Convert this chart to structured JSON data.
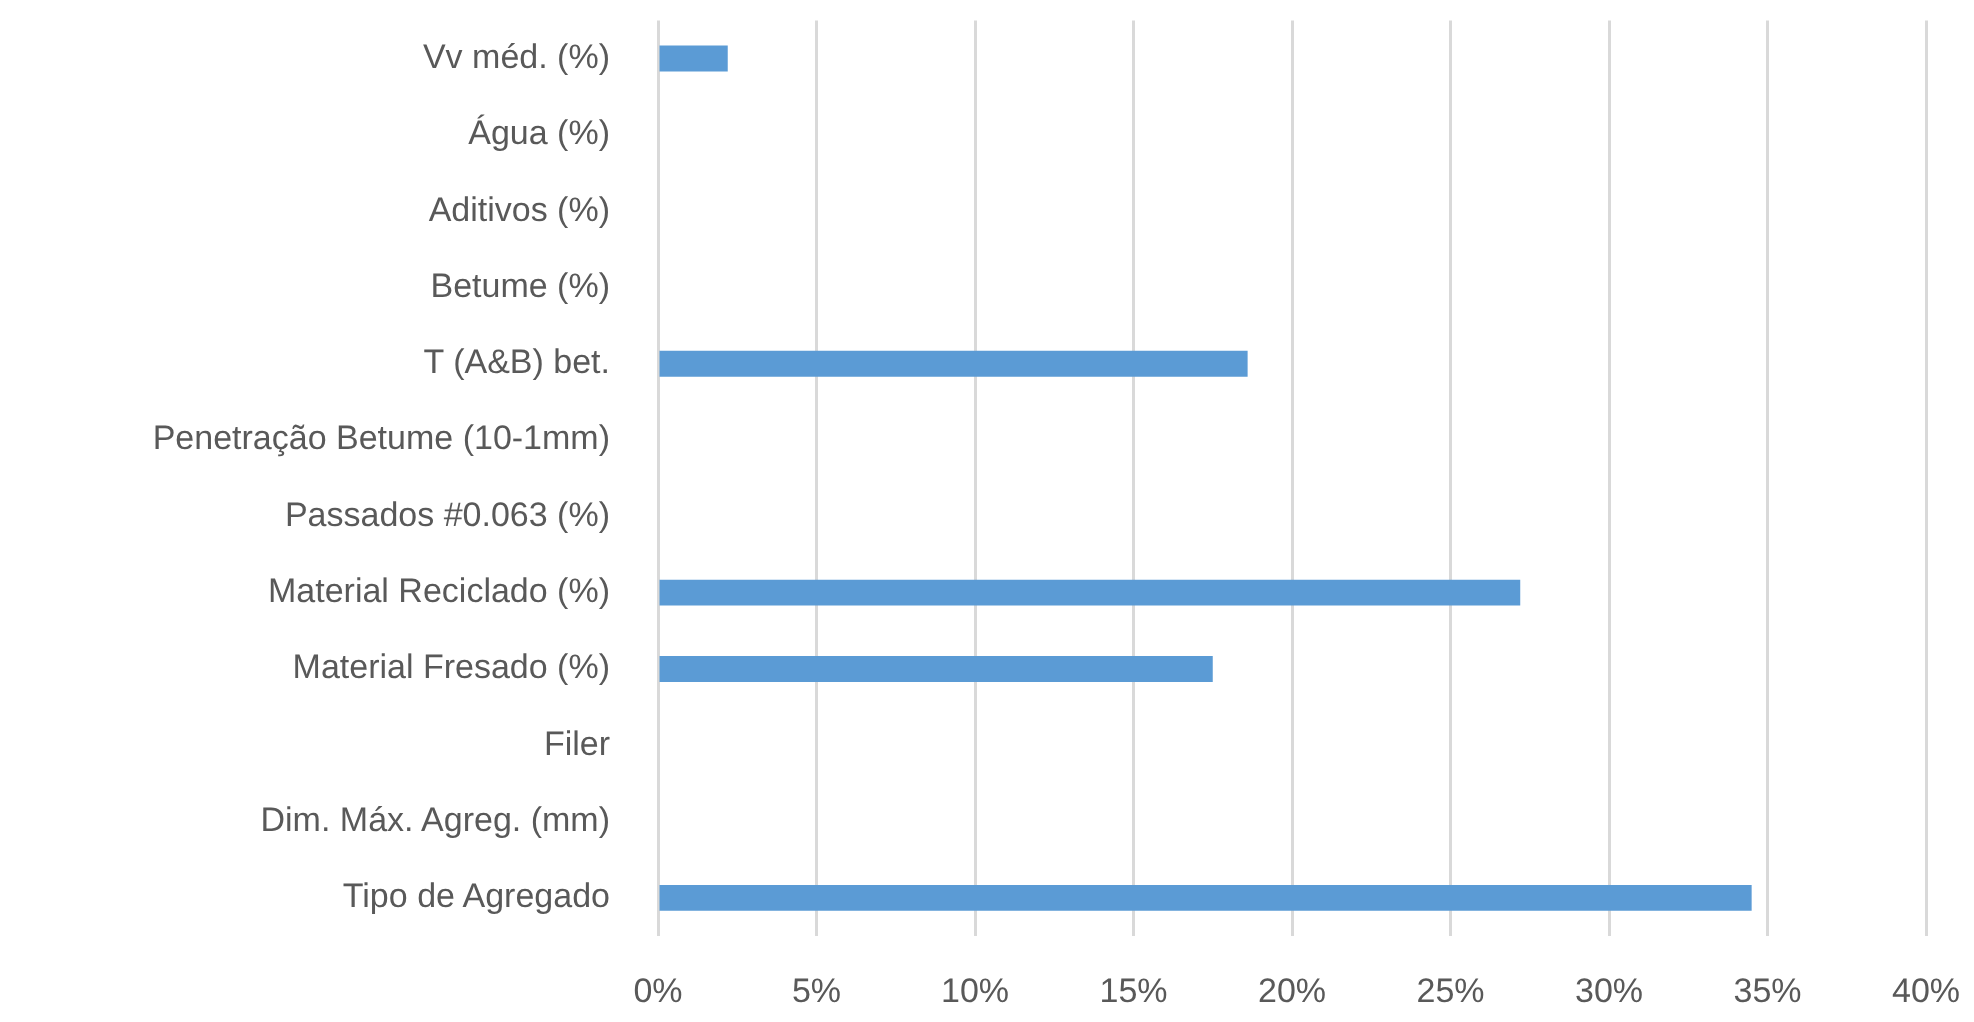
{
  "chart_data": {
    "type": "bar",
    "orientation": "horizontal",
    "categories": [
      "Vv méd. (%)",
      "Água (%)",
      "Aditivos (%)",
      "Betume (%)",
      "T (A&B) bet.",
      "Penetração Betume (10-1mm)",
      "Passados #0.063 (%)",
      "Material Reciclado (%)",
      "Material Fresado (%)",
      "Filer",
      "Dim. Máx. Agreg. (mm)",
      "Tipo de Agregado"
    ],
    "values": [
      2.2,
      null,
      null,
      null,
      18.6,
      null,
      null,
      27.2,
      17.5,
      null,
      null,
      34.5
    ],
    "color": "#5b9bd5",
    "xlim": [
      0,
      40
    ],
    "xticks": [
      {
        "value": 0,
        "label": "0%"
      },
      {
        "value": 5,
        "label": "5%"
      },
      {
        "value": 10,
        "label": "10%"
      },
      {
        "value": 15,
        "label": "15%"
      },
      {
        "value": 20,
        "label": "20%"
      },
      {
        "value": 25,
        "label": "25%"
      },
      {
        "value": 30,
        "label": "30%"
      },
      {
        "value": 35,
        "label": "35%"
      },
      {
        "value": 40,
        "label": "40%"
      }
    ],
    "grid": "x"
  }
}
